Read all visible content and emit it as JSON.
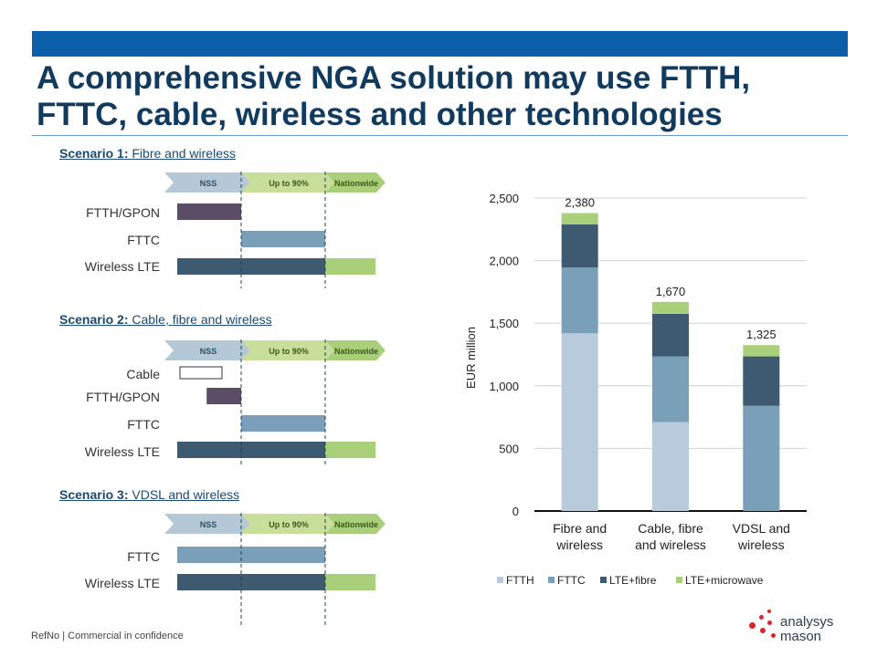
{
  "header": {
    "title_line1": "A comprehensive NGA solution may use FTTH,",
    "title_line2": "FTTC, cable, wireless and other technologies"
  },
  "phases": [
    "NSS",
    "Up to 90%",
    "Nationwide"
  ],
  "scenarios": [
    {
      "prefix": "Scenario 1:",
      "name": "Fibre and wireless",
      "rows": [
        {
          "label": "FTTH/GPON",
          "bars": [
            {
              "from": 0,
              "to": 1,
              "color": "#5b4d66"
            }
          ]
        },
        {
          "label": "FTTC",
          "bars": [
            {
              "from": 1,
              "to": 2,
              "color": "#7a9fb8"
            }
          ]
        },
        {
          "label": "Wireless LTE",
          "bars": [
            {
              "from": 0,
              "to": 2,
              "color": "#3d5a70"
            },
            {
              "from": 2,
              "to": 2.6,
              "color": "#a9cf7a"
            }
          ]
        }
      ]
    },
    {
      "prefix": "Scenario 2:",
      "name": "Cable, fibre and wireless",
      "rows": [
        {
          "label": "Cable",
          "bars": [
            {
              "from": 0,
              "to": 0.55,
              "color": "#ffffff",
              "outline": true
            }
          ]
        },
        {
          "label": "FTTH/GPON",
          "bars": [
            {
              "from": 0.55,
              "to": 1,
              "color": "#5b4d66"
            }
          ]
        },
        {
          "label": "FTTC",
          "bars": [
            {
              "from": 1,
              "to": 2,
              "color": "#7a9fb8"
            }
          ]
        },
        {
          "label": "Wireless LTE",
          "bars": [
            {
              "from": 0,
              "to": 2,
              "color": "#3d5a70"
            },
            {
              "from": 2,
              "to": 2.6,
              "color": "#a9cf7a"
            }
          ]
        }
      ]
    },
    {
      "prefix": "Scenario 3:",
      "name": "VDSL and wireless",
      "rows": [
        {
          "label": "FTTC",
          "bars": [
            {
              "from": 0,
              "to": 2,
              "color": "#7a9fb8"
            }
          ]
        },
        {
          "label": "Wireless LTE",
          "bars": [
            {
              "from": 0,
              "to": 2,
              "color": "#3d5a70"
            },
            {
              "from": 2,
              "to": 2.6,
              "color": "#a9cf7a"
            }
          ]
        }
      ]
    }
  ],
  "chart_data": {
    "type": "bar",
    "stacked": true,
    "categories": [
      "Fibre and wireless",
      "Cable, fibre and wireless",
      "VDSL and wireless"
    ],
    "category_lines": [
      [
        "Fibre and",
        "wireless"
      ],
      [
        "Cable, fibre",
        "and wireless"
      ],
      [
        "VDSL and",
        "wireless"
      ]
    ],
    "series": [
      {
        "name": "FTTH",
        "color": "#b8cadb",
        "values": [
          1420,
          710,
          0
        ]
      },
      {
        "name": "FTTC",
        "color": "#7a9fb8",
        "values": [
          525,
          525,
          840
        ]
      },
      {
        "name": "LTE+fibre",
        "color": "#3d5a70",
        "values": [
          345,
          340,
          395
        ]
      },
      {
        "name": "LTE+microwave",
        "color": "#a9cf7a",
        "values": [
          90,
          95,
          90
        ]
      }
    ],
    "totals": [
      "2,380",
      "1,670",
      "1,325"
    ],
    "ylabel": "EUR million",
    "ylim": [
      0,
      2500
    ],
    "yticks": [
      0,
      500,
      1000,
      1500,
      2000,
      2500
    ],
    "ytick_labels": [
      "0",
      "500",
      "1,000",
      "1,500",
      "2,000",
      "2,500"
    ],
    "grid": true,
    "legend_position": "bottom"
  },
  "footer": {
    "text": "RefNo | Commercial in confidence"
  },
  "logo": {
    "line1": "analysys",
    "line2": "mason"
  }
}
